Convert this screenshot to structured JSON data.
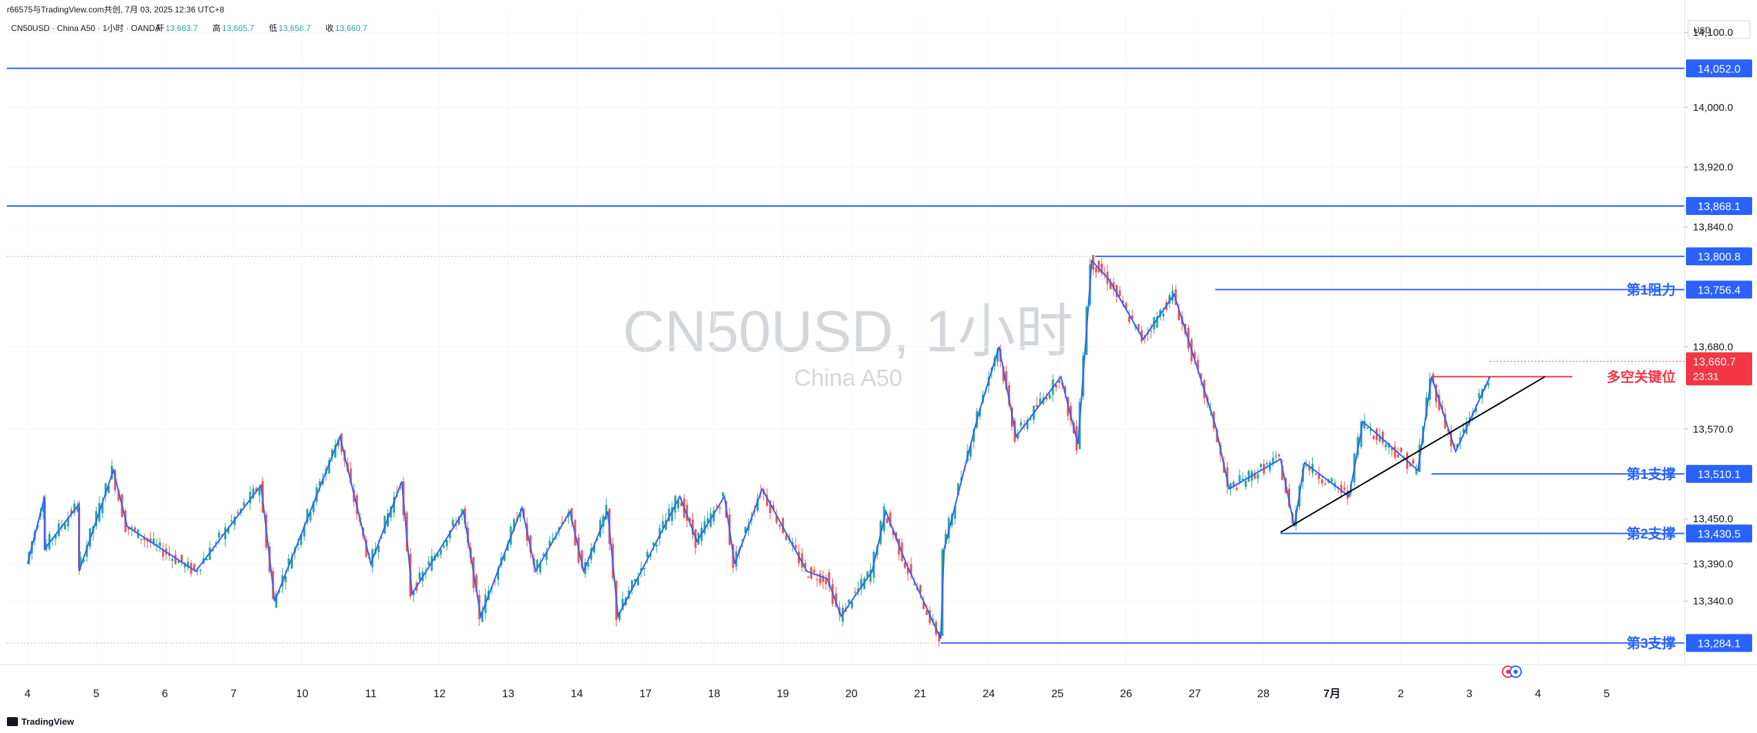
{
  "header": {
    "share_line": "r66575与TradingView.com共创, 7月 03, 2025 12:36 UTC+8",
    "symbol_line": "CN50USD · China A50 · 1小时 · OANDA",
    "ohlc": [
      {
        "label": "开",
        "value": "13,663.7"
      },
      {
        "label": "高",
        "value": "13,665.7"
      },
      {
        "label": "低",
        "value": "13,658.7"
      },
      {
        "label": "收",
        "value": "13,660.7"
      }
    ]
  },
  "watermark": {
    "title": "CN50USD, 1小时",
    "subtitle": "China A50"
  },
  "footer": {
    "brand": "TradingView"
  },
  "colors": {
    "up": "#26a69a",
    "down": "#ef5350",
    "trend": "#2962ff",
    "level_blue": "#2962ff",
    "pivot_red": "#f23645",
    "trendline": "#000000",
    "price_tag": "#f23645"
  },
  "chart_data": {
    "type": "candlestick",
    "currency": "USD",
    "y_ticks": [
      13340.0,
      13390.0,
      13450.0,
      13570.0,
      13680.0,
      13840.0,
      13920.0,
      14000.0,
      14100.0
    ],
    "y_tick_labels": [
      "13,340.0",
      "13,390.0",
      "13,450.0",
      "13,570.0",
      "13,680.0",
      "13,840.0",
      "13,920.0",
      "14,000.0",
      "14,100.0"
    ],
    "ylim": [
      13255,
      14125
    ],
    "x_labels": [
      "4",
      "5",
      "6",
      "7",
      "10",
      "11",
      "12",
      "13",
      "14",
      "17",
      "18",
      "19",
      "20",
      "21",
      "24",
      "25",
      "26",
      "27",
      "28",
      "7月",
      "2",
      "3",
      "4",
      "5"
    ],
    "x_index_range": [
      0,
      23
    ],
    "levels": [
      {
        "value": 14052.0,
        "label": "14,052.0",
        "note": "",
        "color": "#2962ff"
      },
      {
        "value": 13868.1,
        "label": "13,868.1",
        "note": "",
        "color": "#2962ff"
      },
      {
        "value": 13800.8,
        "label": "13,800.8",
        "note": "",
        "color": "#2962ff"
      },
      {
        "value": 13756.4,
        "label": "13,756.4",
        "note": "第1阻力",
        "color": "#2962ff"
      },
      {
        "value": 13640.0,
        "label": "",
        "note": "多空关键位",
        "color": "#f23645"
      },
      {
        "value": 13510.1,
        "label": "13,510.1",
        "note": "第1支撑",
        "color": "#2962ff"
      },
      {
        "value": 13430.5,
        "label": "13,430.5",
        "note": "第2支撑",
        "color": "#2962ff"
      },
      {
        "value": 13284.1,
        "label": "13,284.1",
        "note": "第3支撑",
        "color": "#2962ff"
      }
    ],
    "last_price": {
      "value": 13660.7,
      "label": "13,660.7",
      "countdown": "23:31"
    },
    "zigzag": [
      [
        0.0,
        13390
      ],
      [
        0.25,
        13480
      ],
      [
        0.25,
        13410
      ],
      [
        0.75,
        13470
      ],
      [
        0.75,
        13380
      ],
      [
        1.25,
        13515
      ],
      [
        1.45,
        13440
      ],
      [
        2.45,
        13380
      ],
      [
        3.4,
        13495
      ],
      [
        3.6,
        13340
      ],
      [
        4.55,
        13560
      ],
      [
        5.0,
        13390
      ],
      [
        5.45,
        13500
      ],
      [
        5.6,
        13350
      ],
      [
        6.35,
        13460
      ],
      [
        6.6,
        13320
      ],
      [
        7.2,
        13465
      ],
      [
        7.4,
        13380
      ],
      [
        7.9,
        13460
      ],
      [
        8.1,
        13380
      ],
      [
        8.45,
        13460
      ],
      [
        8.6,
        13320
      ],
      [
        9.5,
        13480
      ],
      [
        9.75,
        13420
      ],
      [
        10.15,
        13480
      ],
      [
        10.3,
        13390
      ],
      [
        10.7,
        13490
      ],
      [
        11.35,
        13380
      ],
      [
        11.65,
        13370
      ],
      [
        11.85,
        13320
      ],
      [
        12.3,
        13380
      ],
      [
        12.5,
        13460
      ],
      [
        12.8,
        13390
      ],
      [
        13.3,
        13290
      ],
      [
        13.35,
        13410
      ],
      [
        13.85,
        13590
      ],
      [
        14.15,
        13680
      ],
      [
        14.4,
        13560
      ],
      [
        15.05,
        13640
      ],
      [
        15.3,
        13550
      ],
      [
        15.5,
        13795
      ],
      [
        15.75,
        13770
      ],
      [
        16.25,
        13690
      ],
      [
        16.7,
        13750
      ],
      [
        17.3,
        13575
      ],
      [
        17.5,
        13490
      ],
      [
        18.25,
        13530
      ],
      [
        18.45,
        13440
      ],
      [
        18.6,
        13525
      ],
      [
        19.25,
        13480
      ],
      [
        19.45,
        13580
      ],
      [
        20.25,
        13515
      ],
      [
        20.45,
        13640
      ],
      [
        20.8,
        13540
      ],
      [
        21.3,
        13640
      ]
    ],
    "trendline": [
      [
        18.25,
        13432
      ],
      [
        22.1,
        13640
      ]
    ],
    "extra_segments": [
      {
        "from": [
          15.55,
          13800.8
        ],
        "to": [
          23.6,
          13800.8
        ]
      },
      {
        "from": [
          17.3,
          13756.4
        ],
        "to": [
          23.6,
          13756.4
        ]
      },
      {
        "from": [
          20.45,
          13640
        ],
        "to": [
          22.5,
          13640
        ]
      },
      {
        "from": [
          20.45,
          13510.1
        ],
        "to": [
          23.6,
          13510.1
        ]
      },
      {
        "from": [
          18.25,
          13430.5
        ],
        "to": [
          23.6,
          13430.5
        ]
      },
      {
        "from": [
          13.3,
          13284.1
        ],
        "to": [
          23.6,
          13284.1
        ]
      }
    ]
  }
}
